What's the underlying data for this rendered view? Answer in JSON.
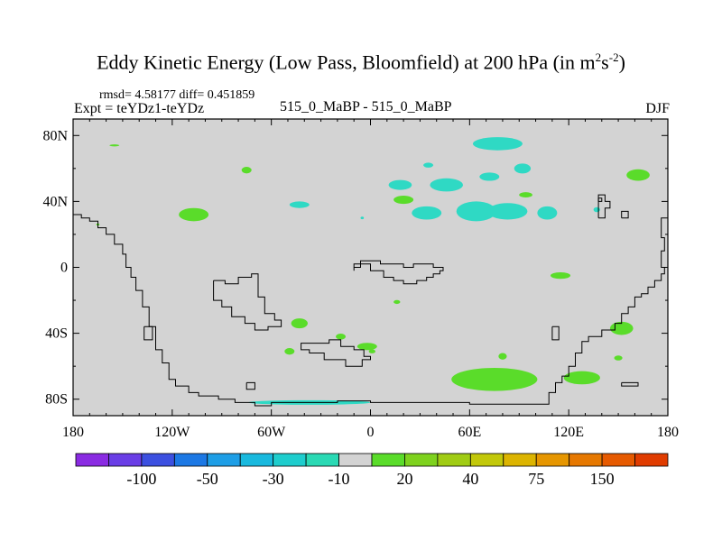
{
  "title": {
    "main": "Eddy Kinetic Energy (Low Pass, Bloomfield) at 200 hPa (in m",
    "exp1": "2",
    "mid": "s",
    "exp2": "-2",
    "close": ")"
  },
  "stats": "rmsd= 4.58177 diff= 0.451859",
  "expt": "Expt = teYDz1-teYDz",
  "center_label": "515_0_MaBP - 515_0_MaBP",
  "season": "DJF",
  "colors": {
    "background": "#d3d3d3",
    "positive_small": "#5adc2a",
    "negative_small": "#2fd9c4",
    "coast": "#000000"
  },
  "chart_data": {
    "type": "heatmap",
    "projection": "cylindrical-equidistant",
    "xlim": [
      -180,
      180
    ],
    "ylim": [
      -90,
      90
    ],
    "x_ticks": [
      {
        "value": -180,
        "label": "180"
      },
      {
        "value": -120,
        "label": "120W"
      },
      {
        "value": -60,
        "label": "60W"
      },
      {
        "value": 0,
        "label": "0"
      },
      {
        "value": 60,
        "label": "60E"
      },
      {
        "value": 120,
        "label": "120E"
      },
      {
        "value": 180,
        "label": "180"
      }
    ],
    "y_ticks": [
      {
        "value": 80,
        "label": "80N"
      },
      {
        "value": 40,
        "label": "40N"
      },
      {
        "value": 0,
        "label": "0"
      },
      {
        "value": -40,
        "label": "40S"
      },
      {
        "value": -80,
        "label": "80S"
      }
    ],
    "colorbar": {
      "colors": [
        "#8a2be2",
        "#6a3ee6",
        "#3c50e0",
        "#1c78e4",
        "#1e9ee6",
        "#19b9de",
        "#1ecdcd",
        "#2ad9b4",
        "#d3d3d3",
        "#5adc2a",
        "#7ed21e",
        "#a0cc14",
        "#c2c80a",
        "#dcb400",
        "#e69600",
        "#e67800",
        "#e65a00",
        "#e03c00"
      ],
      "labels": [
        "-100",
        "-50",
        "-30",
        "-10",
        "20",
        "40",
        "75",
        "150"
      ]
    },
    "positive_regions": [
      {
        "lon": -155,
        "lat": 74,
        "rlon": 3,
        "rlat": 0.6
      },
      {
        "lon": -107,
        "lat": 32,
        "rlon": 9,
        "rlat": 4
      },
      {
        "lon": -75,
        "lat": 59,
        "rlon": 3,
        "rlat": 2
      },
      {
        "lon": 20,
        "lat": 41,
        "rlon": 6,
        "rlat": 2.5
      },
      {
        "lon": 94,
        "lat": 44,
        "rlon": 4,
        "rlat": 1.6
      },
      {
        "lon": 162,
        "lat": 56,
        "rlon": 7,
        "rlat": 3.5
      },
      {
        "lon": 115,
        "lat": -5,
        "rlon": 6,
        "rlat": 2
      },
      {
        "lon": -43,
        "lat": -34,
        "rlon": 5,
        "rlat": 3
      },
      {
        "lon": -18,
        "lat": -42,
        "rlon": 3,
        "rlat": 1.8
      },
      {
        "lon": -2,
        "lat": -48,
        "rlon": 6,
        "rlat": 2.2
      },
      {
        "lon": 1,
        "lat": -51,
        "rlon": 2,
        "rlat": 1.2
      },
      {
        "lon": -49,
        "lat": -51,
        "rlon": 3,
        "rlat": 2
      },
      {
        "lon": 152,
        "lat": -37,
        "rlon": 7,
        "rlat": 4
      },
      {
        "lon": 150,
        "lat": -55,
        "rlon": 2.5,
        "rlat": 1.5
      },
      {
        "lon": 80,
        "lat": -54,
        "rlon": 2.5,
        "rlat": 2
      },
      {
        "lon": 75,
        "lat": -68,
        "rlon": 26,
        "rlat": 7
      },
      {
        "lon": 128,
        "lat": -67,
        "rlon": 11,
        "rlat": 4
      },
      {
        "lon": 16,
        "lat": -21,
        "rlon": 2,
        "rlat": 1.2
      },
      {
        "lon": -165,
        "lat": 26,
        "rlon": 1,
        "rlat": 0.6
      }
    ],
    "negative_regions": [
      {
        "lon": 77,
        "lat": 75,
        "rlon": 15,
        "rlat": 4
      },
      {
        "lon": 35,
        "lat": 62,
        "rlon": 3,
        "rlat": 1.5
      },
      {
        "lon": 46,
        "lat": 50,
        "rlon": 10,
        "rlat": 4
      },
      {
        "lon": 72,
        "lat": 55,
        "rlon": 6,
        "rlat": 2.5
      },
      {
        "lon": 92,
        "lat": 60,
        "rlon": 5,
        "rlat": 3
      },
      {
        "lon": 18,
        "lat": 50,
        "rlon": 7,
        "rlat": 3
      },
      {
        "lon": 34,
        "lat": 33,
        "rlon": 9,
        "rlat": 4
      },
      {
        "lon": 64,
        "lat": 34,
        "rlon": 12,
        "rlat": 6
      },
      {
        "lon": 83,
        "lat": 34,
        "rlon": 12,
        "rlat": 5
      },
      {
        "lon": 107,
        "lat": 33,
        "rlon": 6,
        "rlat": 4
      },
      {
        "lon": 137,
        "lat": 35,
        "rlon": 2,
        "rlat": 1.5
      },
      {
        "lon": -43,
        "lat": 38,
        "rlon": 6,
        "rlat": 2
      },
      {
        "lon": -5,
        "lat": 30,
        "rlon": 1,
        "rlat": 0.8
      },
      {
        "lon": -37,
        "lat": -82,
        "rlon": 37,
        "rlat": 1.4
      }
    ],
    "coastlines": [
      [
        [
          -180,
          32
        ],
        [
          -175,
          32
        ],
        [
          -175,
          30
        ],
        [
          -170,
          30
        ],
        [
          -170,
          28
        ],
        [
          -165,
          28
        ],
        [
          -165,
          24
        ],
        [
          -160,
          24
        ],
        [
          -160,
          20
        ],
        [
          -155,
          20
        ],
        [
          -155,
          14
        ],
        [
          -150,
          14
        ],
        [
          -150,
          8
        ],
        [
          -148,
          8
        ],
        [
          -148,
          0
        ],
        [
          -145,
          0
        ],
        [
          -145,
          -6
        ],
        [
          -142,
          -6
        ],
        [
          -142,
          -14
        ],
        [
          -138,
          -14
        ],
        [
          -138,
          -24
        ],
        [
          -134,
          -24
        ],
        [
          -134,
          -36
        ],
        [
          -130,
          -36
        ],
        [
          -130,
          -50
        ],
        [
          -126,
          -50
        ],
        [
          -126,
          -58
        ],
        [
          -122,
          -58
        ],
        [
          -122,
          -68
        ],
        [
          -118,
          -68
        ],
        [
          -118,
          -72
        ],
        [
          -110,
          -72
        ],
        [
          -110,
          -76
        ],
        [
          -104,
          -76
        ],
        [
          -104,
          -78
        ],
        [
          -92,
          -78
        ],
        [
          -92,
          -80
        ],
        [
          -82,
          -80
        ],
        [
          -82,
          -82
        ],
        [
          -70,
          -82
        ],
        [
          -70,
          -84
        ],
        [
          -60,
          -84
        ],
        [
          -60,
          -82
        ],
        [
          -20,
          -82
        ],
        [
          -20,
          -81
        ],
        [
          0,
          -81
        ],
        [
          0,
          -82
        ],
        [
          60,
          -82
        ],
        [
          60,
          -83
        ],
        [
          108,
          -83
        ],
        [
          108,
          -76
        ],
        [
          112,
          -76
        ],
        [
          112,
          -70
        ],
        [
          116,
          -70
        ],
        [
          116,
          -66
        ],
        [
          120,
          -66
        ],
        [
          120,
          -60
        ],
        [
          124,
          -60
        ],
        [
          124,
          -52
        ],
        [
          128,
          -52
        ],
        [
          128,
          -45
        ],
        [
          132,
          -45
        ],
        [
          132,
          -42
        ],
        [
          140,
          -42
        ],
        [
          140,
          -38
        ],
        [
          148,
          -38
        ],
        [
          148,
          -34
        ],
        [
          152,
          -34
        ],
        [
          152,
          -28
        ],
        [
          156,
          -28
        ],
        [
          156,
          -24
        ],
        [
          160,
          -24
        ],
        [
          160,
          -18
        ],
        [
          164,
          -18
        ],
        [
          164,
          -16
        ],
        [
          168,
          -16
        ],
        [
          168,
          -12
        ],
        [
          172,
          -12
        ],
        [
          172,
          -8
        ],
        [
          176,
          -8
        ],
        [
          176,
          -4
        ],
        [
          178,
          -4
        ],
        [
          178,
          0
        ],
        [
          176,
          0
        ],
        [
          176,
          10
        ],
        [
          178,
          10
        ],
        [
          178,
          18
        ],
        [
          176,
          18
        ],
        [
          176,
          30
        ],
        [
          180,
          30
        ]
      ],
      [
        [
          -95,
          -8
        ],
        [
          -88,
          -8
        ],
        [
          -88,
          -10
        ],
        [
          -80,
          -10
        ],
        [
          -80,
          -6
        ],
        [
          -72,
          -6
        ],
        [
          -72,
          -4
        ],
        [
          -68,
          -4
        ],
        [
          -68,
          -18
        ],
        [
          -64,
          -18
        ],
        [
          -64,
          -28
        ],
        [
          -58,
          -28
        ],
        [
          -58,
          -32
        ],
        [
          -54,
          -32
        ],
        [
          -54,
          -36
        ],
        [
          -62,
          -36
        ],
        [
          -62,
          -38
        ],
        [
          -70,
          -38
        ],
        [
          -70,
          -34
        ],
        [
          -76,
          -34
        ],
        [
          -76,
          -30
        ],
        [
          -84,
          -30
        ],
        [
          -84,
          -24
        ],
        [
          -90,
          -24
        ],
        [
          -90,
          -20
        ],
        [
          -95,
          -20
        ],
        [
          -95,
          -8
        ]
      ],
      [
        [
          -10,
          -2
        ],
        [
          -10,
          0
        ],
        [
          -6,
          0
        ],
        [
          -6,
          2
        ],
        [
          0,
          2
        ],
        [
          0,
          -2
        ],
        [
          8,
          -2
        ],
        [
          8,
          -6
        ],
        [
          14,
          -6
        ],
        [
          14,
          -8
        ],
        [
          20,
          -8
        ],
        [
          20,
          -10
        ],
        [
          28,
          -10
        ],
        [
          28,
          -8
        ],
        [
          34,
          -8
        ],
        [
          34,
          -6
        ],
        [
          38,
          -6
        ],
        [
          38,
          -4
        ],
        [
          42,
          -4
        ],
        [
          42,
          -2
        ],
        [
          44,
          -2
        ],
        [
          44,
          0
        ],
        [
          38,
          0
        ],
        [
          38,
          2
        ],
        [
          26,
          2
        ],
        [
          26,
          0
        ],
        [
          20,
          0
        ],
        [
          20,
          2
        ],
        [
          6,
          2
        ],
        [
          6,
          4
        ],
        [
          -6,
          4
        ],
        [
          -6,
          2
        ],
        [
          -10,
          2
        ],
        [
          -10,
          -2
        ]
      ],
      [
        [
          -35,
          -46
        ],
        [
          -42,
          -46
        ],
        [
          -42,
          -50
        ],
        [
          -37,
          -50
        ],
        [
          -37,
          -52
        ],
        [
          -28,
          -52
        ],
        [
          -28,
          -56
        ],
        [
          -15,
          -56
        ],
        [
          -15,
          -60
        ],
        [
          -5,
          -60
        ],
        [
          -5,
          -56
        ],
        [
          0,
          -56
        ],
        [
          0,
          -54
        ],
        [
          -4,
          -54
        ],
        [
          -4,
          -50
        ],
        [
          -10,
          -50
        ],
        [
          -10,
          -48
        ],
        [
          -18,
          -48
        ],
        [
          -18,
          -44
        ],
        [
          -25,
          -44
        ],
        [
          -25,
          -46
        ],
        [
          -35,
          -46
        ]
      ],
      [
        [
          -137,
          -36
        ],
        [
          -132,
          -36
        ],
        [
          -132,
          -44
        ],
        [
          -137,
          -44
        ],
        [
          -137,
          -36
        ]
      ],
      [
        [
          -75,
          -70
        ],
        [
          -70,
          -70
        ],
        [
          -70,
          -74
        ],
        [
          -75,
          -74
        ],
        [
          -75,
          -70
        ]
      ],
      [
        [
          110,
          -36
        ],
        [
          114,
          -36
        ],
        [
          114,
          -44
        ],
        [
          110,
          -44
        ],
        [
          110,
          -36
        ]
      ],
      [
        [
          152,
          -70
        ],
        [
          162,
          -70
        ],
        [
          162,
          -72
        ],
        [
          152,
          -72
        ],
        [
          152,
          -70
        ]
      ],
      [
        [
          138,
          30
        ],
        [
          142,
          30
        ],
        [
          142,
          36
        ],
        [
          145,
          36
        ],
        [
          145,
          40
        ],
        [
          142,
          40
        ],
        [
          142,
          44
        ],
        [
          138,
          44
        ],
        [
          138,
          30
        ]
      ],
      [
        [
          152,
          30
        ],
        [
          156,
          30
        ],
        [
          156,
          34
        ],
        [
          152,
          34
        ],
        [
          152,
          30
        ]
      ],
      [
        [
          138,
          40
        ],
        [
          140,
          40
        ],
        [
          140,
          42
        ],
        [
          138,
          42
        ],
        [
          138,
          40
        ]
      ]
    ]
  }
}
